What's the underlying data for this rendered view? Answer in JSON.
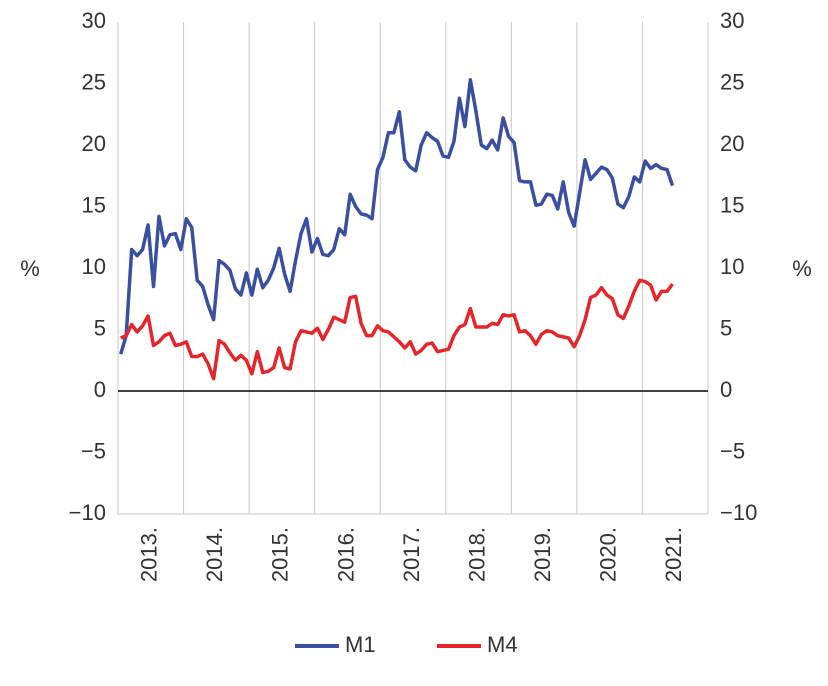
{
  "chart_data": {
    "type": "line",
    "categories": [
      "2013.",
      null,
      null,
      null,
      null,
      null,
      null,
      null,
      null,
      null,
      null,
      null,
      "2014.",
      null,
      null,
      null,
      null,
      null,
      null,
      null,
      null,
      null,
      null,
      null,
      "2015.",
      null,
      null,
      null,
      null,
      null,
      null,
      null,
      null,
      null,
      null,
      null,
      "2016.",
      null,
      null,
      null,
      null,
      null,
      null,
      null,
      null,
      null,
      null,
      null,
      "2017.",
      null,
      null,
      null,
      null,
      null,
      null,
      null,
      null,
      null,
      null,
      null,
      "2018.",
      null,
      null,
      null,
      null,
      null,
      null,
      null,
      null,
      null,
      null,
      null,
      "2019.",
      null,
      null,
      null,
      null,
      null,
      null,
      null,
      null,
      null,
      null,
      null,
      "2020.",
      null,
      null,
      null,
      null,
      null,
      null,
      null,
      null,
      null,
      null,
      null,
      "2021.",
      null,
      null,
      null,
      null,
      null
    ],
    "series": [
      {
        "name": "M1",
        "color": "#3a4fa0",
        "values": [
          3,
          4.5,
          11.5,
          11,
          11.5,
          13.5,
          8.5,
          14.2,
          11.8,
          12.7,
          12.8,
          11.5,
          14,
          13.3,
          9,
          8.5,
          7,
          5.8,
          10.6,
          10.3,
          9.8,
          8.3,
          7.8,
          9.6,
          7.8,
          9.9,
          8.4,
          9,
          10,
          11.6,
          9.5,
          8.1,
          10.6,
          12.8,
          14,
          11.3,
          12.4,
          11.1,
          11,
          11.5,
          13.2,
          12.7,
          16,
          15,
          14.4,
          14.3,
          14,
          18,
          19,
          21,
          21,
          22.7,
          18.8,
          18.2,
          17.9,
          20,
          21,
          20.6,
          20.3,
          19.1,
          19,
          20.3,
          23.8,
          21.5,
          25.3,
          22.8,
          20,
          19.7,
          20.4,
          19.6,
          22.2,
          20.7,
          20.2,
          17.1,
          17,
          17,
          15.1,
          15.2,
          16,
          15.9,
          14.8,
          17,
          14.5,
          13.4,
          16.1,
          18.8,
          17.2,
          17.7,
          18.2,
          18,
          17.3,
          15.2,
          14.9,
          15.8,
          17.4,
          17,
          18.7,
          18.1,
          18.4,
          18.1,
          18,
          16.7
        ]
      },
      {
        "name": "M4",
        "color": "#e4262a",
        "values": [
          4.3,
          4.5,
          5.4,
          4.8,
          5.3,
          6.1,
          3.7,
          4,
          4.5,
          4.7,
          3.7,
          3.8,
          4,
          2.8,
          2.8,
          3,
          2.2,
          1,
          4.1,
          3.8,
          3.1,
          2.5,
          2.9,
          2.5,
          1.4,
          3.2,
          1.5,
          1.6,
          1.9,
          3.5,
          1.9,
          1.8,
          4,
          4.9,
          4.8,
          4.7,
          5.1,
          4.2,
          5,
          6,
          5.8,
          5.6,
          7.6,
          7.7,
          5.5,
          4.5,
          4.5,
          5.3,
          4.9,
          4.8,
          4.4,
          4,
          3.5,
          4,
          3,
          3.3,
          3.8,
          3.9,
          3.2,
          3.3,
          3.4,
          4.5,
          5.2,
          5.4,
          6.7,
          5.2,
          5.2,
          5.2,
          5.5,
          5.4,
          6.2,
          6.1,
          6.2,
          4.8,
          4.9,
          4.5,
          3.8,
          4.6,
          4.9,
          4.8,
          4.5,
          4.4,
          4.3,
          3.6,
          4.5,
          5.8,
          7.6,
          7.8,
          8.4,
          7.8,
          7.5,
          6.2,
          5.9,
          6.9,
          8.1,
          9,
          8.9,
          8.6,
          7.4,
          8.1,
          8.1,
          8.7
        ]
      }
    ],
    "y_label": "%",
    "y2_label": "%",
    "ylim": [
      -10,
      30
    ],
    "yticks": [
      {
        "value": -10,
        "label": "−10"
      },
      {
        "value": -5,
        "label": "−5"
      },
      0,
      5,
      10,
      15,
      20,
      25,
      30
    ],
    "y2lim": [
      -10,
      30
    ],
    "y2ticks": [
      {
        "value": -10,
        "label": "−10"
      },
      {
        "value": -5,
        "label": "−5"
      },
      0,
      5,
      10,
      15,
      20,
      25,
      30
    ],
    "legend": "bottom"
  }
}
